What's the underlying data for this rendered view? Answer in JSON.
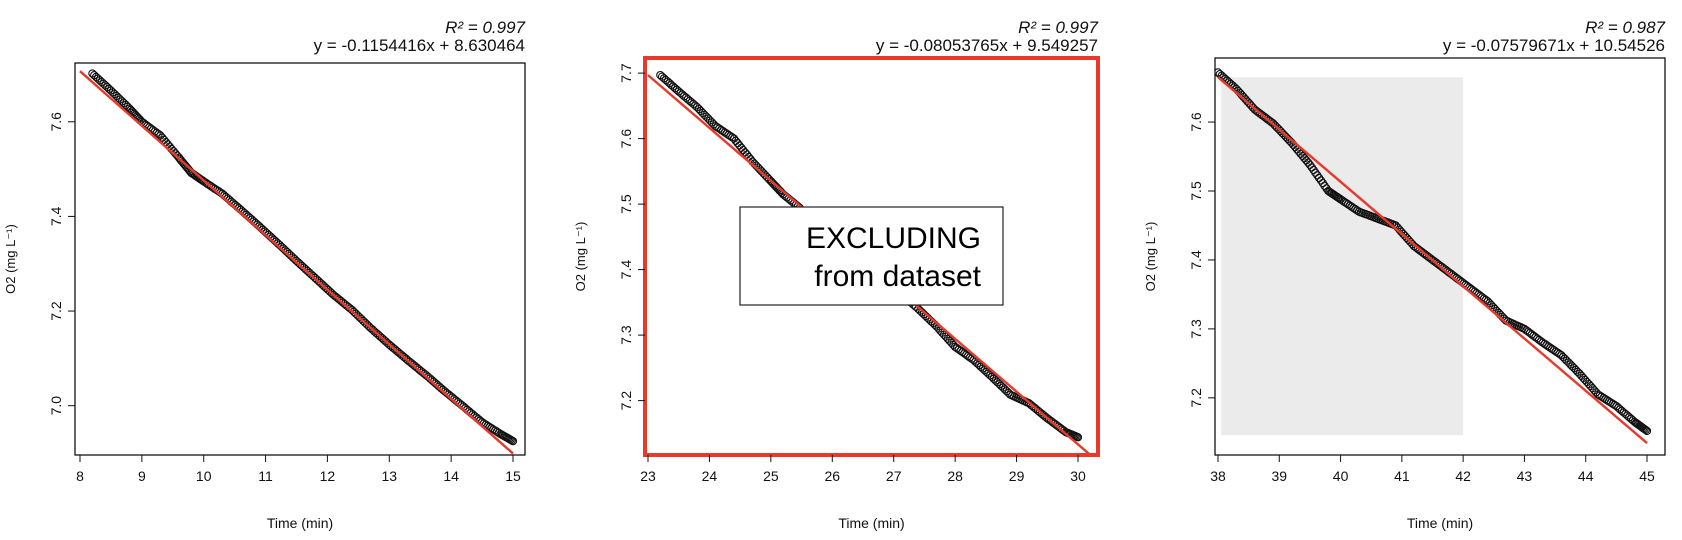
{
  "chart_data": [
    {
      "type": "scatter",
      "xlabel": "Time (min)",
      "ylabel": "O2 (mg L⁻¹)",
      "xlim": [
        8,
        15
      ],
      "ylim": [
        6.9,
        7.72
      ],
      "xticks": [
        "8",
        "9",
        "10",
        "11",
        "12",
        "13",
        "14",
        "15"
      ],
      "yticks": [
        "7.0",
        "7.2",
        "7.4",
        "7.6"
      ],
      "r2_label": "R² = 0.997",
      "equation": "y = -0.1154416x + 8.630464",
      "fit": {
        "slope": -0.1154416,
        "intercept": 8.630464,
        "x_range": [
          8,
          15
        ]
      },
      "series": [
        {
          "points": [
            [
              8.2,
              7.702
            ],
            [
              8.5,
              7.666
            ],
            [
              8.8,
              7.628
            ],
            [
              9.0,
              7.6
            ],
            [
              9.3,
              7.571
            ],
            [
              9.6,
              7.524
            ],
            [
              9.8,
              7.492
            ],
            [
              10.0,
              7.474
            ],
            [
              10.3,
              7.448
            ],
            [
              10.6,
              7.414
            ],
            [
              10.9,
              7.379
            ],
            [
              11.2,
              7.343
            ],
            [
              11.5,
              7.306
            ],
            [
              11.8,
              7.27
            ],
            [
              12.1,
              7.234
            ],
            [
              12.4,
              7.202
            ],
            [
              12.7,
              7.164
            ],
            [
              13.0,
              7.129
            ],
            [
              13.3,
              7.096
            ],
            [
              13.6,
              7.064
            ],
            [
              13.9,
              7.03
            ],
            [
              14.2,
              6.998
            ],
            [
              14.5,
              6.965
            ],
            [
              14.8,
              6.94
            ],
            [
              15.0,
              6.925
            ]
          ]
        }
      ],
      "annotation_box": null,
      "highlight": null,
      "frame_color": "#000000"
    },
    {
      "type": "scatter",
      "xlabel": "Time (min)",
      "ylabel": "O2 (mg L⁻¹)",
      "xlim": [
        23,
        30
      ],
      "ylim": [
        7.12,
        7.72
      ],
      "xticks": [
        "23",
        "24",
        "25",
        "26",
        "27",
        "28",
        "29",
        "30"
      ],
      "yticks": [
        "7.2",
        "7.3",
        "7.4",
        "7.5",
        "7.6",
        "7.7"
      ],
      "r2_label": "R² = 0.997",
      "equation": "y = -0.08053765x + 9.549257",
      "fit": {
        "slope": -0.08053765,
        "intercept": 9.549257,
        "x_range": [
          23,
          30.3
        ]
      },
      "series": [
        {
          "points": [
            [
              23.2,
              7.697
            ],
            [
              23.5,
              7.672
            ],
            [
              23.8,
              7.648
            ],
            [
              24.1,
              7.619
            ],
            [
              24.4,
              7.6
            ],
            [
              24.7,
              7.565
            ],
            [
              25.0,
              7.535
            ],
            [
              25.2,
              7.515
            ],
            [
              25.5,
              7.492
            ],
            [
              27.0,
              7.372
            ],
            [
              27.4,
              7.34
            ],
            [
              27.7,
              7.313
            ],
            [
              28.0,
              7.282
            ],
            [
              28.3,
              7.262
            ],
            [
              28.6,
              7.236
            ],
            [
              28.9,
              7.209
            ],
            [
              29.2,
              7.196
            ],
            [
              29.5,
              7.173
            ],
            [
              29.8,
              7.152
            ],
            [
              30.0,
              7.144
            ]
          ]
        }
      ],
      "annotation_box": {
        "lines": [
          "EXCLUDING",
          "from dataset"
        ]
      },
      "highlight": null,
      "frame_color": "#e8392a"
    },
    {
      "type": "scatter",
      "xlabel": "Time (min)",
      "ylabel": "O2 (mg L⁻¹)",
      "xlim": [
        38,
        45
      ],
      "ylim": [
        7.12,
        7.69
      ],
      "xticks": [
        "38",
        "39",
        "40",
        "41",
        "42",
        "43",
        "44",
        "45"
      ],
      "yticks": [
        "7.2",
        "7.3",
        "7.4",
        "7.5",
        "7.6"
      ],
      "r2_label": "R² = 0.987",
      "equation": "y = -0.07579671x + 10.54526",
      "fit": {
        "slope": -0.07579671,
        "intercept": 10.54526,
        "x_range": [
          38,
          45
        ]
      },
      "series": [
        {
          "points": [
            [
              38.0,
              7.672
            ],
            [
              38.3,
              7.648
            ],
            [
              38.6,
              7.618
            ],
            [
              38.9,
              7.598
            ],
            [
              39.2,
              7.57
            ],
            [
              39.5,
              7.538
            ],
            [
              39.8,
              7.5
            ],
            [
              40.0,
              7.488
            ],
            [
              40.3,
              7.47
            ],
            [
              40.6,
              7.46
            ],
            [
              40.9,
              7.45
            ],
            [
              41.2,
              7.42
            ],
            [
              41.5,
              7.4
            ],
            [
              41.8,
              7.38
            ],
            [
              42.1,
              7.36
            ],
            [
              42.4,
              7.34
            ],
            [
              42.7,
              7.312
            ],
            [
              43.0,
              7.3
            ],
            [
              43.3,
              7.28
            ],
            [
              43.6,
              7.262
            ],
            [
              43.9,
              7.235
            ],
            [
              44.2,
              7.205
            ],
            [
              44.5,
              7.188
            ],
            [
              44.8,
              7.165
            ],
            [
              45.0,
              7.152
            ]
          ]
        }
      ],
      "annotation_box": null,
      "highlight": {
        "x_range": [
          38.05,
          42.0
        ],
        "y_range": [
          7.146,
          7.665
        ],
        "color": "#ebebeb"
      },
      "frame_color": "#000000"
    }
  ]
}
